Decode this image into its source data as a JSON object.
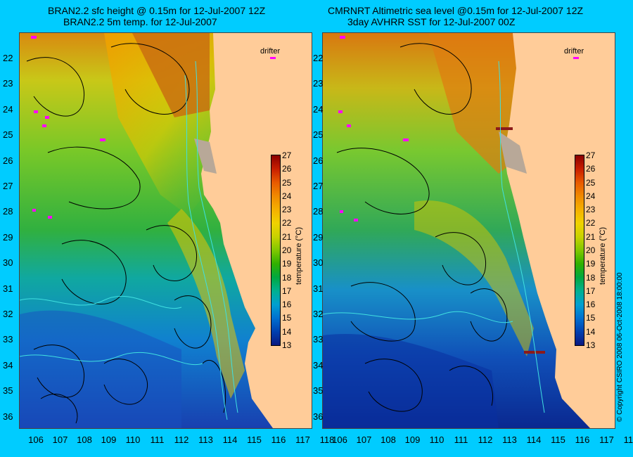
{
  "left_panel": {
    "title_line1": "BRAN2.2 sfc height @ 0.15m for 12-Jul-2007 12Z",
    "title_line2": "BRAN2.2 5m temp. for 12-Jul-2007",
    "drifter_label": "drifter"
  },
  "right_panel": {
    "title_line1": "CMRNRT Altimetric sea level  @0.15m  for 12-Jul-2007 12Z",
    "title_line2": "3day AVHRR SST for 12-Jul-2007 00Z",
    "drifter_label": "drifter"
  },
  "y_axis_labels": [
    "22",
    "23",
    "24",
    "25",
    "26",
    "27",
    "28",
    "29",
    "30",
    "31",
    "32",
    "33",
    "34",
    "35",
    "36"
  ],
  "x_axis_labels": [
    "106",
    "107",
    "108",
    "109",
    "110",
    "111",
    "112",
    "113",
    "114",
    "115",
    "116",
    "117",
    "118"
  ],
  "colorbar": {
    "label": "temperature (°C)",
    "ticks": [
      "27",
      "26",
      "25",
      "24",
      "23",
      "22",
      "21",
      "20",
      "19",
      "18",
      "17",
      "16",
      "15",
      "14",
      "13"
    ],
    "colors": [
      "#8b0000",
      "#c81e00",
      "#e85a00",
      "#f08a00",
      "#f5b000",
      "#f0d200",
      "#c8d200",
      "#80c800",
      "#30b000",
      "#00a840",
      "#00b090",
      "#00a0d0",
      "#0070d0",
      "#0040b0",
      "#0a1880"
    ]
  },
  "copyright": "© Copyright CSIRO 2008    06-Oct-2008 18:00:00",
  "colors": {
    "background": "#00ccff",
    "land": "#ffcc99",
    "contour": "#000000",
    "bathymetry": "#40e0e0",
    "drifter": "#ff00ff"
  }
}
